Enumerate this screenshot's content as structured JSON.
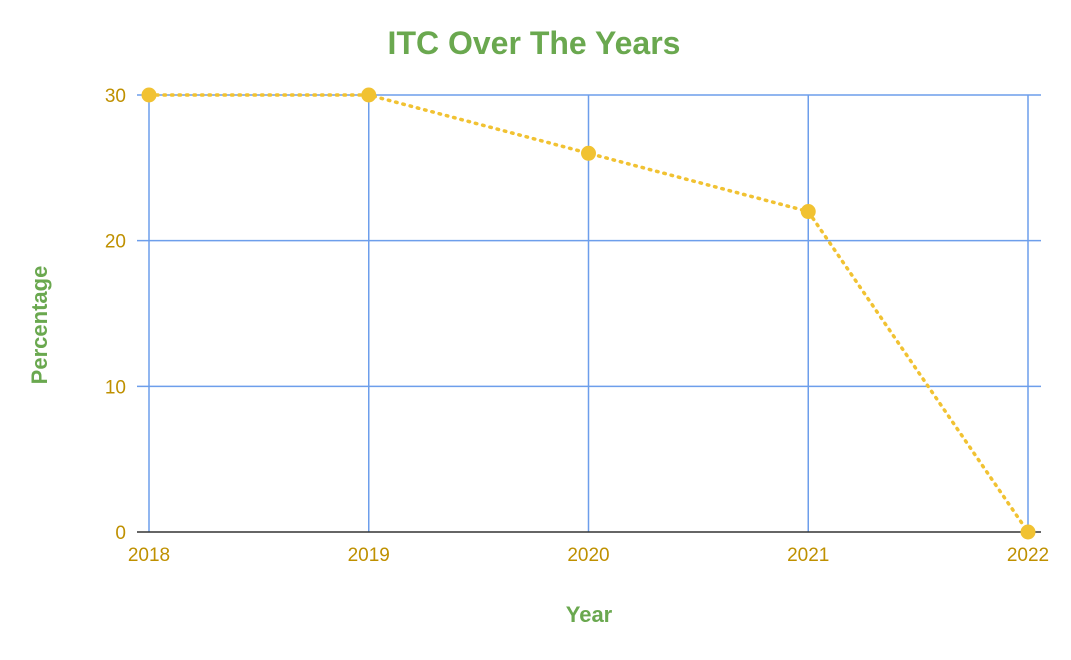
{
  "colors": {
    "title": "#6aa84f",
    "axis_title": "#6aa84f",
    "tick_label": "#bf9000",
    "grid": "#6d9eeb",
    "baseline": "#333333",
    "series": "#f1c232"
  },
  "chart_data": {
    "type": "line",
    "title": "ITC Over The Years",
    "xlabel": "Year",
    "ylabel": "Percentage",
    "x": [
      "2018",
      "2019",
      "2020",
      "2021",
      "2022"
    ],
    "series": [
      {
        "values": [
          30,
          30,
          26,
          22,
          0
        ],
        "line_style": "dotted",
        "markers": true
      }
    ],
    "ylim": [
      0,
      30
    ],
    "yticks": [
      "0",
      "10",
      "20",
      "30"
    ],
    "grid": true,
    "legend": "none"
  }
}
